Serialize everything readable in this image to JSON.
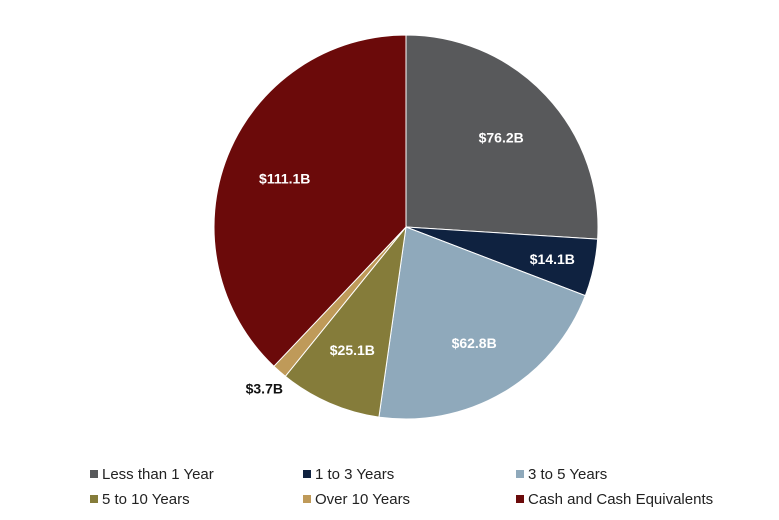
{
  "chart_data": {
    "type": "pie",
    "slices": [
      {
        "label": "Less than 1 Year",
        "value": 76.2,
        "data_label": "$76.2B",
        "color": "#58595b",
        "label_color": "#ffffff"
      },
      {
        "label": "1 to 3 Years",
        "value": 14.1,
        "data_label": "$14.1B",
        "color": "#0f2240",
        "label_color": "#ffffff"
      },
      {
        "label": "3 to 5 Years",
        "value": 62.8,
        "data_label": "$62.8B",
        "color": "#8fa9bb",
        "label_color": "#ffffff"
      },
      {
        "label": "5 to 10 Years",
        "value": 25.1,
        "data_label": "$25.1B",
        "color": "#857c3a",
        "label_color": "#ffffff"
      },
      {
        "label": "Over 10 Years",
        "value": 3.7,
        "data_label": "$3.7B",
        "color": "#bf9a59",
        "label_color": "#111111"
      },
      {
        "label": "Cash and Cash Equivalents",
        "value": 111.1,
        "data_label": "$111.1B",
        "color": "#6b0a0a",
        "label_color": "#ffffff"
      }
    ],
    "start_angle": "12 o'clock",
    "direction": "clockwise",
    "legend_position": "bottom"
  }
}
